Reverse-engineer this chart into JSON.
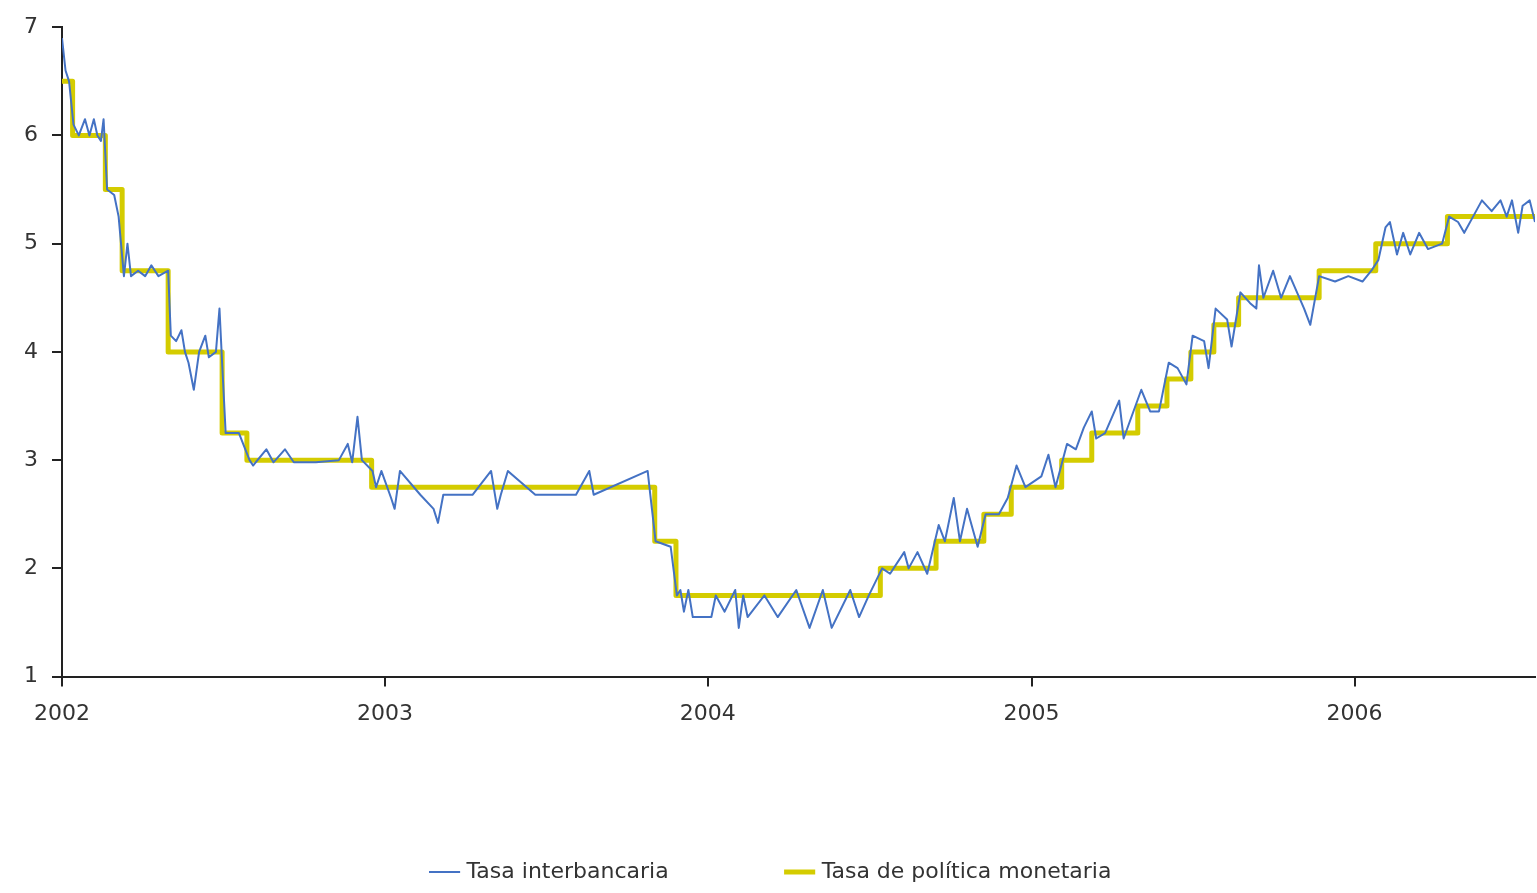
{
  "chart_data": {
    "type": "line",
    "xlim": [
      "2002-01-01",
      "2006-07-24"
    ],
    "xticks": [
      "2002",
      "2003",
      "2004",
      "2005",
      "2006"
    ],
    "ylim": [
      1,
      7
    ],
    "yticks": [
      1,
      2,
      3,
      4,
      5,
      6,
      7
    ],
    "grid": false,
    "legend": "bottom",
    "marker": "none",
    "series": [
      {
        "name": "Tasa interbancaria",
        "color": "#4472c4",
        "x": [
          "2002-01-01",
          "2002-01-05",
          "2002-01-09",
          "2002-01-14",
          "2002-01-20",
          "2002-01-27",
          "2002-02-01",
          "2002-02-06",
          "2002-02-10",
          "2002-02-14",
          "2002-02-17",
          "2002-02-21",
          "2002-03-01",
          "2002-03-06",
          "2002-03-12",
          "2002-03-16",
          "2002-03-20",
          "2002-03-28",
          "2002-04-05",
          "2002-04-12",
          "2002-04-20",
          "2002-05-01",
          "2002-05-04",
          "2002-05-10",
          "2002-05-16",
          "2002-05-20",
          "2002-05-24",
          "2002-05-30",
          "2002-06-05",
          "2002-06-12",
          "2002-06-16",
          "2002-06-24",
          "2002-06-28",
          "2002-07-01",
          "2002-07-05",
          "2002-07-20",
          "2002-08-01",
          "2002-08-05",
          "2002-08-20",
          "2002-08-28",
          "2002-09-10",
          "2002-09-20",
          "2002-10-15",
          "2002-11-10",
          "2002-11-20",
          "2002-11-25",
          "2002-12-01",
          "2002-12-06",
          "2002-12-18",
          "2002-12-22",
          "2002-12-28",
          "2003-01-08",
          "2003-01-12",
          "2003-01-18",
          "2003-02-10",
          "2003-02-25",
          "2003-03-02",
          "2003-03-08",
          "2003-04-10",
          "2003-05-01",
          "2003-05-08",
          "2003-05-12",
          "2003-05-20",
          "2003-06-20",
          "2003-08-05",
          "2003-08-20",
          "2003-08-25",
          "2003-10-25",
          "2003-10-28",
          "2003-11-03",
          "2003-11-20",
          "2003-11-27",
          "2003-12-01",
          "2003-12-05",
          "2003-12-10",
          "2003-12-15",
          "2004-01-05",
          "2004-01-10",
          "2004-01-20",
          "2004-02-01",
          "2004-02-05",
          "2004-02-10",
          "2004-02-15",
          "2004-03-05",
          "2004-03-20",
          "2004-04-10",
          "2004-04-25",
          "2004-05-10",
          "2004-05-20",
          "2004-06-10",
          "2004-06-20",
          "2004-07-01",
          "2004-07-16",
          "2004-07-25",
          "2004-08-10",
          "2004-08-15",
          "2004-08-25",
          "2004-09-05",
          "2004-09-18",
          "2004-09-25",
          "2004-10-05",
          "2004-10-12",
          "2004-10-20",
          "2004-11-01",
          "2004-11-10",
          "2004-11-25",
          "2004-12-05",
          "2004-12-15",
          "2004-12-25",
          "2005-01-12",
          "2005-01-20",
          "2005-01-28",
          "2005-02-10",
          "2005-02-20",
          "2005-03-01",
          "2005-03-10",
          "2005-03-15",
          "2005-03-25",
          "2005-04-10",
          "2005-04-15",
          "2005-05-05",
          "2005-05-15",
          "2005-05-25",
          "2005-06-05",
          "2005-06-15",
          "2005-06-25",
          "2005-07-02",
          "2005-07-15",
          "2005-07-20",
          "2005-07-28",
          "2005-08-10",
          "2005-08-15",
          "2005-08-25",
          "2005-09-05",
          "2005-09-12",
          "2005-09-15",
          "2005-09-20",
          "2005-10-01",
          "2005-10-10",
          "2005-10-20",
          "2005-11-05",
          "2005-11-12",
          "2005-11-22",
          "2005-12-10",
          "2005-12-25",
          "2006-01-10",
          "2006-01-20",
          "2006-01-28",
          "2006-02-05",
          "2006-02-10",
          "2006-02-18",
          "2006-02-25",
          "2006-03-05",
          "2006-03-15",
          "2006-03-25",
          "2006-04-10",
          "2006-04-18",
          "2006-04-28",
          "2006-05-05",
          "2006-05-15",
          "2006-05-25",
          "2006-06-05",
          "2006-06-15",
          "2006-06-22",
          "2006-06-28",
          "2006-07-05",
          "2006-07-10",
          "2006-07-18",
          "2006-07-24"
        ],
        "values": [
          6.9,
          6.6,
          6.5,
          6.1,
          6.0,
          6.15,
          6.0,
          6.15,
          6.0,
          5.95,
          6.15,
          5.5,
          5.45,
          5.25,
          4.7,
          5.0,
          4.7,
          4.75,
          4.7,
          4.8,
          4.7,
          4.75,
          4.15,
          4.1,
          4.2,
          4.0,
          3.9,
          3.65,
          4.0,
          4.15,
          3.95,
          4.0,
          4.4,
          3.9,
          3.25,
          3.25,
          3.0,
          2.95,
          3.1,
          2.98,
          3.1,
          2.98,
          2.98,
          3.0,
          3.15,
          2.98,
          3.4,
          3.0,
          2.9,
          2.75,
          2.9,
          2.65,
          2.55,
          2.9,
          2.68,
          2.55,
          2.42,
          2.68,
          2.68,
          2.9,
          2.55,
          2.68,
          2.9,
          2.68,
          2.68,
          2.9,
          2.68,
          2.9,
          2.68,
          2.25,
          2.2,
          1.75,
          1.8,
          1.6,
          1.8,
          1.55,
          1.55,
          1.75,
          1.6,
          1.8,
          1.45,
          1.75,
          1.55,
          1.75,
          1.55,
          1.8,
          1.45,
          1.8,
          1.45,
          1.8,
          1.55,
          1.75,
          2.0,
          1.95,
          2.15,
          2.0,
          2.15,
          1.95,
          2.4,
          2.25,
          2.65,
          2.25,
          2.55,
          2.2,
          2.5,
          2.5,
          2.65,
          2.95,
          2.75,
          2.85,
          3.05,
          2.75,
          3.15,
          3.1,
          3.3,
          3.45,
          3.2,
          3.25,
          3.55,
          3.2,
          3.65,
          3.45,
          3.45,
          3.9,
          3.85,
          3.7,
          4.15,
          4.1,
          3.85,
          4.4,
          4.3,
          4.05,
          4.55,
          4.45,
          4.4,
          4.8,
          4.5,
          4.75,
          4.5,
          4.7,
          4.4,
          4.25,
          4.7,
          4.65,
          4.7,
          4.65,
          4.75,
          4.85,
          5.15,
          5.2,
          4.9,
          5.1,
          4.9,
          5.1,
          4.95,
          5.0,
          5.25,
          5.2,
          5.1,
          5.25,
          5.4,
          5.3,
          5.4,
          5.25,
          5.4,
          5.1,
          5.35,
          5.4,
          5.2
        ]
      },
      {
        "name": "Tasa de política monetaria",
        "type": "step",
        "color": "#d4cc00",
        "x": [
          "2002-01-01",
          "2002-01-13",
          "2002-02-19",
          "2002-03-10",
          "2002-05-01",
          "2002-07-01",
          "2002-07-29",
          "2002-12-17",
          "2003-11-02",
          "2003-11-26",
          "2004-07-14",
          "2004-09-15",
          "2004-11-08",
          "2004-12-09",
          "2005-02-04",
          "2005-03-10",
          "2005-05-01",
          "2005-06-03",
          "2005-06-30",
          "2005-07-26",
          "2005-08-23",
          "2005-11-22",
          "2006-01-25",
          "2006-04-16",
          "2006-07-24"
        ],
        "values": [
          6.5,
          6.0,
          5.5,
          4.75,
          4.0,
          3.25,
          3.0,
          2.75,
          2.25,
          1.75,
          2.0,
          2.25,
          2.5,
          2.75,
          3.0,
          3.25,
          3.5,
          3.75,
          4.0,
          4.25,
          4.5,
          4.75,
          5.0,
          5.25,
          5.25
        ]
      }
    ]
  }
}
